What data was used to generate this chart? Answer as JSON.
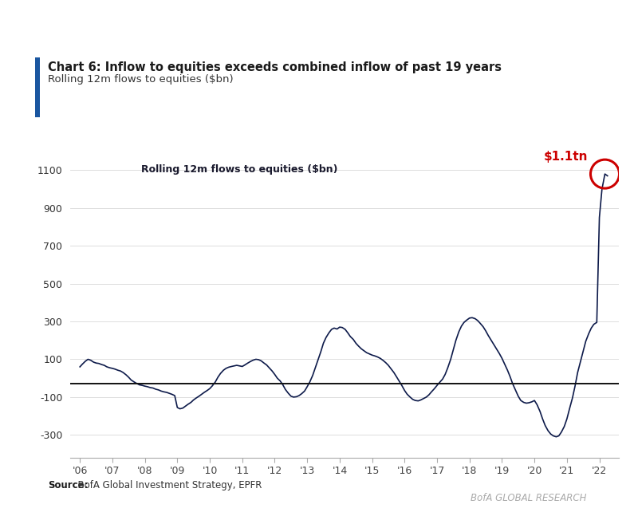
{
  "title_bold": "Chart 6: Inflow to equities exceeds combined inflow of past 19 years",
  "subtitle": "Rolling 12m flows to equities ($bn)",
  "inner_label": "Rolling 12m flows to equities ($bn)",
  "source_bold": "Source:",
  "source_rest": "  BofA Global Investment Strategy, EPFR",
  "branding": "BofA GLOBAL RESEARCH",
  "annotation_text": "$1.1tn",
  "line_color": "#0d1a4a",
  "annotation_color": "#cc0000",
  "zero_line_color": "#111111",
  "background_color": "#ffffff",
  "title_bar_color": "#1a56a0",
  "xlim_start": 2005.7,
  "xlim_end": 2022.6,
  "ylim_bottom": -420,
  "ylim_top": 1230,
  "yticks": [
    -300,
    -100,
    100,
    300,
    500,
    700,
    900,
    1100
  ],
  "xtick_labels": [
    "'06",
    "'07",
    "'08",
    "'09",
    "'10",
    "'11",
    "'12",
    "'13",
    "'14",
    "'15",
    "'16",
    "'17",
    "'18",
    "'19",
    "'20",
    "'21",
    "'22"
  ],
  "xtick_positions": [
    2006,
    2007,
    2008,
    2009,
    2010,
    2011,
    2012,
    2013,
    2014,
    2015,
    2016,
    2017,
    2018,
    2019,
    2020,
    2021,
    2022
  ],
  "zero_line_y": -30,
  "x": [
    2006.0,
    2006.08,
    2006.17,
    2006.25,
    2006.33,
    2006.42,
    2006.5,
    2006.58,
    2006.67,
    2006.75,
    2006.83,
    2006.92,
    2007.0,
    2007.08,
    2007.17,
    2007.25,
    2007.33,
    2007.42,
    2007.5,
    2007.58,
    2007.67,
    2007.75,
    2007.83,
    2007.92,
    2008.0,
    2008.08,
    2008.17,
    2008.25,
    2008.33,
    2008.42,
    2008.5,
    2008.58,
    2008.67,
    2008.75,
    2008.83,
    2008.92,
    2009.0,
    2009.08,
    2009.17,
    2009.25,
    2009.33,
    2009.42,
    2009.5,
    2009.58,
    2009.67,
    2009.75,
    2009.83,
    2009.92,
    2010.0,
    2010.08,
    2010.17,
    2010.25,
    2010.33,
    2010.42,
    2010.5,
    2010.58,
    2010.67,
    2010.75,
    2010.83,
    2010.92,
    2011.0,
    2011.08,
    2011.17,
    2011.25,
    2011.33,
    2011.42,
    2011.5,
    2011.58,
    2011.67,
    2011.75,
    2011.83,
    2011.92,
    2012.0,
    2012.08,
    2012.17,
    2012.25,
    2012.33,
    2012.42,
    2012.5,
    2012.58,
    2012.67,
    2012.75,
    2012.83,
    2012.92,
    2013.0,
    2013.08,
    2013.17,
    2013.25,
    2013.33,
    2013.42,
    2013.5,
    2013.58,
    2013.67,
    2013.75,
    2013.83,
    2013.92,
    2014.0,
    2014.08,
    2014.17,
    2014.25,
    2014.33,
    2014.42,
    2014.5,
    2014.58,
    2014.67,
    2014.75,
    2014.83,
    2014.92,
    2015.0,
    2015.08,
    2015.17,
    2015.25,
    2015.33,
    2015.42,
    2015.5,
    2015.58,
    2015.67,
    2015.75,
    2015.83,
    2015.92,
    2016.0,
    2016.08,
    2016.17,
    2016.25,
    2016.33,
    2016.42,
    2016.5,
    2016.58,
    2016.67,
    2016.75,
    2016.83,
    2016.92,
    2017.0,
    2017.08,
    2017.17,
    2017.25,
    2017.33,
    2017.42,
    2017.5,
    2017.58,
    2017.67,
    2017.75,
    2017.83,
    2017.92,
    2018.0,
    2018.08,
    2018.17,
    2018.25,
    2018.33,
    2018.42,
    2018.5,
    2018.58,
    2018.67,
    2018.75,
    2018.83,
    2018.92,
    2019.0,
    2019.08,
    2019.17,
    2019.25,
    2019.33,
    2019.42,
    2019.5,
    2019.58,
    2019.67,
    2019.75,
    2019.83,
    2019.92,
    2020.0,
    2020.08,
    2020.17,
    2020.25,
    2020.33,
    2020.42,
    2020.5,
    2020.58,
    2020.67,
    2020.75,
    2020.83,
    2020.92,
    2021.0,
    2021.08,
    2021.17,
    2021.25,
    2021.33,
    2021.42,
    2021.5,
    2021.58,
    2021.67,
    2021.75,
    2021.83,
    2021.92,
    2022.0,
    2022.08,
    2022.17,
    2022.25
  ],
  "y": [
    60,
    75,
    90,
    100,
    95,
    85,
    80,
    78,
    72,
    68,
    60,
    55,
    52,
    48,
    42,
    38,
    30,
    18,
    5,
    -10,
    -20,
    -28,
    -35,
    -38,
    -42,
    -45,
    -50,
    -52,
    -58,
    -62,
    -68,
    -72,
    -75,
    -80,
    -85,
    -92,
    -155,
    -162,
    -158,
    -148,
    -138,
    -128,
    -115,
    -105,
    -95,
    -85,
    -75,
    -65,
    -55,
    -40,
    -20,
    5,
    25,
    42,
    52,
    58,
    62,
    65,
    68,
    65,
    62,
    70,
    80,
    88,
    95,
    100,
    98,
    92,
    80,
    70,
    55,
    38,
    20,
    0,
    -15,
    -35,
    -60,
    -80,
    -95,
    -100,
    -98,
    -92,
    -82,
    -68,
    -45,
    -20,
    15,
    55,
    95,
    140,
    185,
    215,
    240,
    258,
    265,
    260,
    270,
    268,
    258,
    240,
    220,
    205,
    185,
    170,
    155,
    145,
    135,
    128,
    122,
    118,
    112,
    105,
    95,
    82,
    68,
    50,
    30,
    8,
    -15,
    -40,
    -65,
    -85,
    -100,
    -112,
    -118,
    -120,
    -115,
    -108,
    -100,
    -88,
    -72,
    -55,
    -38,
    -22,
    -5,
    20,
    55,
    100,
    150,
    200,
    245,
    275,
    295,
    308,
    318,
    320,
    315,
    305,
    290,
    272,
    250,
    225,
    200,
    178,
    155,
    130,
    105,
    75,
    42,
    8,
    -30,
    -65,
    -95,
    -118,
    -128,
    -132,
    -130,
    -125,
    -118,
    -140,
    -175,
    -215,
    -250,
    -278,
    -295,
    -305,
    -310,
    -305,
    -285,
    -255,
    -215,
    -162,
    -105,
    -42,
    30,
    90,
    145,
    195,
    235,
    265,
    285,
    295,
    850,
    1000,
    1080,
    1070
  ]
}
